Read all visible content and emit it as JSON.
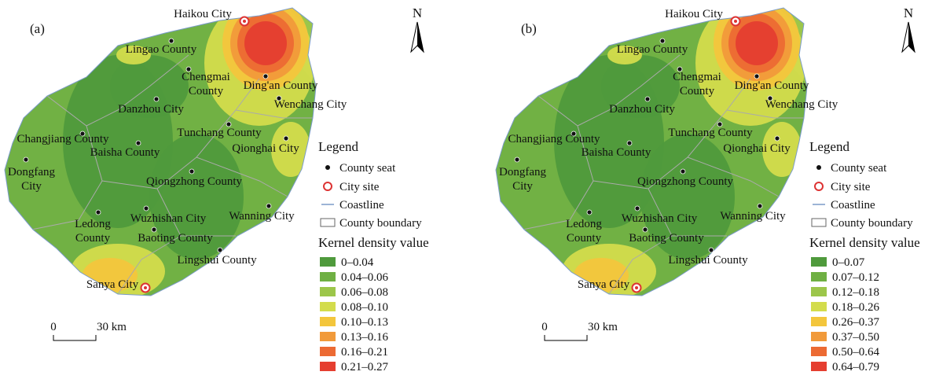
{
  "panels": [
    {
      "label": "(a)",
      "north": "N",
      "places": [
        {
          "lines": [
            "Haikou City"
          ],
          "kind": "city"
        },
        {
          "lines": [
            "Lingao County"
          ],
          "kind": "county"
        },
        {
          "lines": [
            "Chengmai",
            "County"
          ],
          "kind": "county"
        },
        {
          "lines": [
            "Ding'an County"
          ],
          "kind": "county"
        },
        {
          "lines": [
            "Wenchang City"
          ],
          "kind": "county"
        },
        {
          "lines": [
            "Danzhou City"
          ],
          "kind": "county"
        },
        {
          "lines": [
            "Tunchang County"
          ],
          "kind": "county"
        },
        {
          "lines": [
            "Qionghai City"
          ],
          "kind": "county"
        },
        {
          "lines": [
            "Changjiang County"
          ],
          "kind": "county"
        },
        {
          "lines": [
            "Baisha County"
          ],
          "kind": "county"
        },
        {
          "lines": [
            "Dongfang",
            "City"
          ],
          "kind": "county"
        },
        {
          "lines": [
            "Qiongzhong County"
          ],
          "kind": "county"
        },
        {
          "lines": [
            "Ledong",
            "County"
          ],
          "kind": "county"
        },
        {
          "lines": [
            "Wuzhishan City"
          ],
          "kind": "county"
        },
        {
          "lines": [
            "Wanning City"
          ],
          "kind": "county"
        },
        {
          "lines": [
            "Baoting County"
          ],
          "kind": "county"
        },
        {
          "lines": [
            "Lingshui County"
          ],
          "kind": "county"
        },
        {
          "lines": [
            "Sanya City"
          ],
          "kind": "city"
        }
      ],
      "legend": {
        "title": "Legend",
        "items": [
          "County seat",
          "City site",
          "Coastline",
          "County boundary"
        ],
        "density_title": "Kernel density value",
        "classes": [
          {
            "range": "0–0.04",
            "color": "#4f9a3c"
          },
          {
            "range": "0.04–0.06",
            "color": "#6fb043"
          },
          {
            "range": "0.06–0.08",
            "color": "#9cc64a"
          },
          {
            "range": "0.08–0.10",
            "color": "#d3dc4c"
          },
          {
            "range": "0.10–0.13",
            "color": "#f3c63c"
          },
          {
            "range": "0.13–0.16",
            "color": "#f19a3a"
          },
          {
            "range": "0.16–0.21",
            "color": "#ec6a33"
          },
          {
            "range": "0.21–0.27",
            "color": "#e53e30"
          }
        ]
      },
      "scale": {
        "zero": "0",
        "distance": "30 km"
      }
    },
    {
      "label": "(b)",
      "north": "N",
      "places": [
        {
          "lines": [
            "Haikou City"
          ],
          "kind": "city"
        },
        {
          "lines": [
            "Lingao County"
          ],
          "kind": "county"
        },
        {
          "lines": [
            "Chengmai",
            "County"
          ],
          "kind": "county"
        },
        {
          "lines": [
            "Ding'an County"
          ],
          "kind": "county"
        },
        {
          "lines": [
            "Wenchang City"
          ],
          "kind": "county"
        },
        {
          "lines": [
            "Danzhou City"
          ],
          "kind": "county"
        },
        {
          "lines": [
            "Tunchang County"
          ],
          "kind": "county"
        },
        {
          "lines": [
            "Qionghai City"
          ],
          "kind": "county"
        },
        {
          "lines": [
            "Changjiang County"
          ],
          "kind": "county"
        },
        {
          "lines": [
            "Baisha County"
          ],
          "kind": "county"
        },
        {
          "lines": [
            "Dongfang",
            "City"
          ],
          "kind": "county"
        },
        {
          "lines": [
            "Qiongzhong County"
          ],
          "kind": "county"
        },
        {
          "lines": [
            "Ledong",
            "County"
          ],
          "kind": "county"
        },
        {
          "lines": [
            "Wuzhishan City"
          ],
          "kind": "county"
        },
        {
          "lines": [
            "Wanning City"
          ],
          "kind": "county"
        },
        {
          "lines": [
            "Baoting County"
          ],
          "kind": "county"
        },
        {
          "lines": [
            "Lingshui County"
          ],
          "kind": "county"
        },
        {
          "lines": [
            "Sanya City"
          ],
          "kind": "city"
        }
      ],
      "legend": {
        "title": "Legend",
        "items": [
          "County seat",
          "City site",
          "Coastline",
          "County boundary"
        ],
        "density_title": "Kernel density value",
        "classes": [
          {
            "range": "0–0.07",
            "color": "#4f9a3c"
          },
          {
            "range": "0.07–0.12",
            "color": "#6fb043"
          },
          {
            "range": "0.12–0.18",
            "color": "#9cc64a"
          },
          {
            "range": "0.18–0.26",
            "color": "#d3dc4c"
          },
          {
            "range": "0.26–0.37",
            "color": "#f3c63c"
          },
          {
            "range": "0.37–0.50",
            "color": "#f19a3a"
          },
          {
            "range": "0.50–0.64",
            "color": "#ec6a33"
          },
          {
            "range": "0.64–0.79",
            "color": "#e53e30"
          }
        ]
      },
      "scale": {
        "zero": "0",
        "distance": "30 km"
      }
    }
  ]
}
